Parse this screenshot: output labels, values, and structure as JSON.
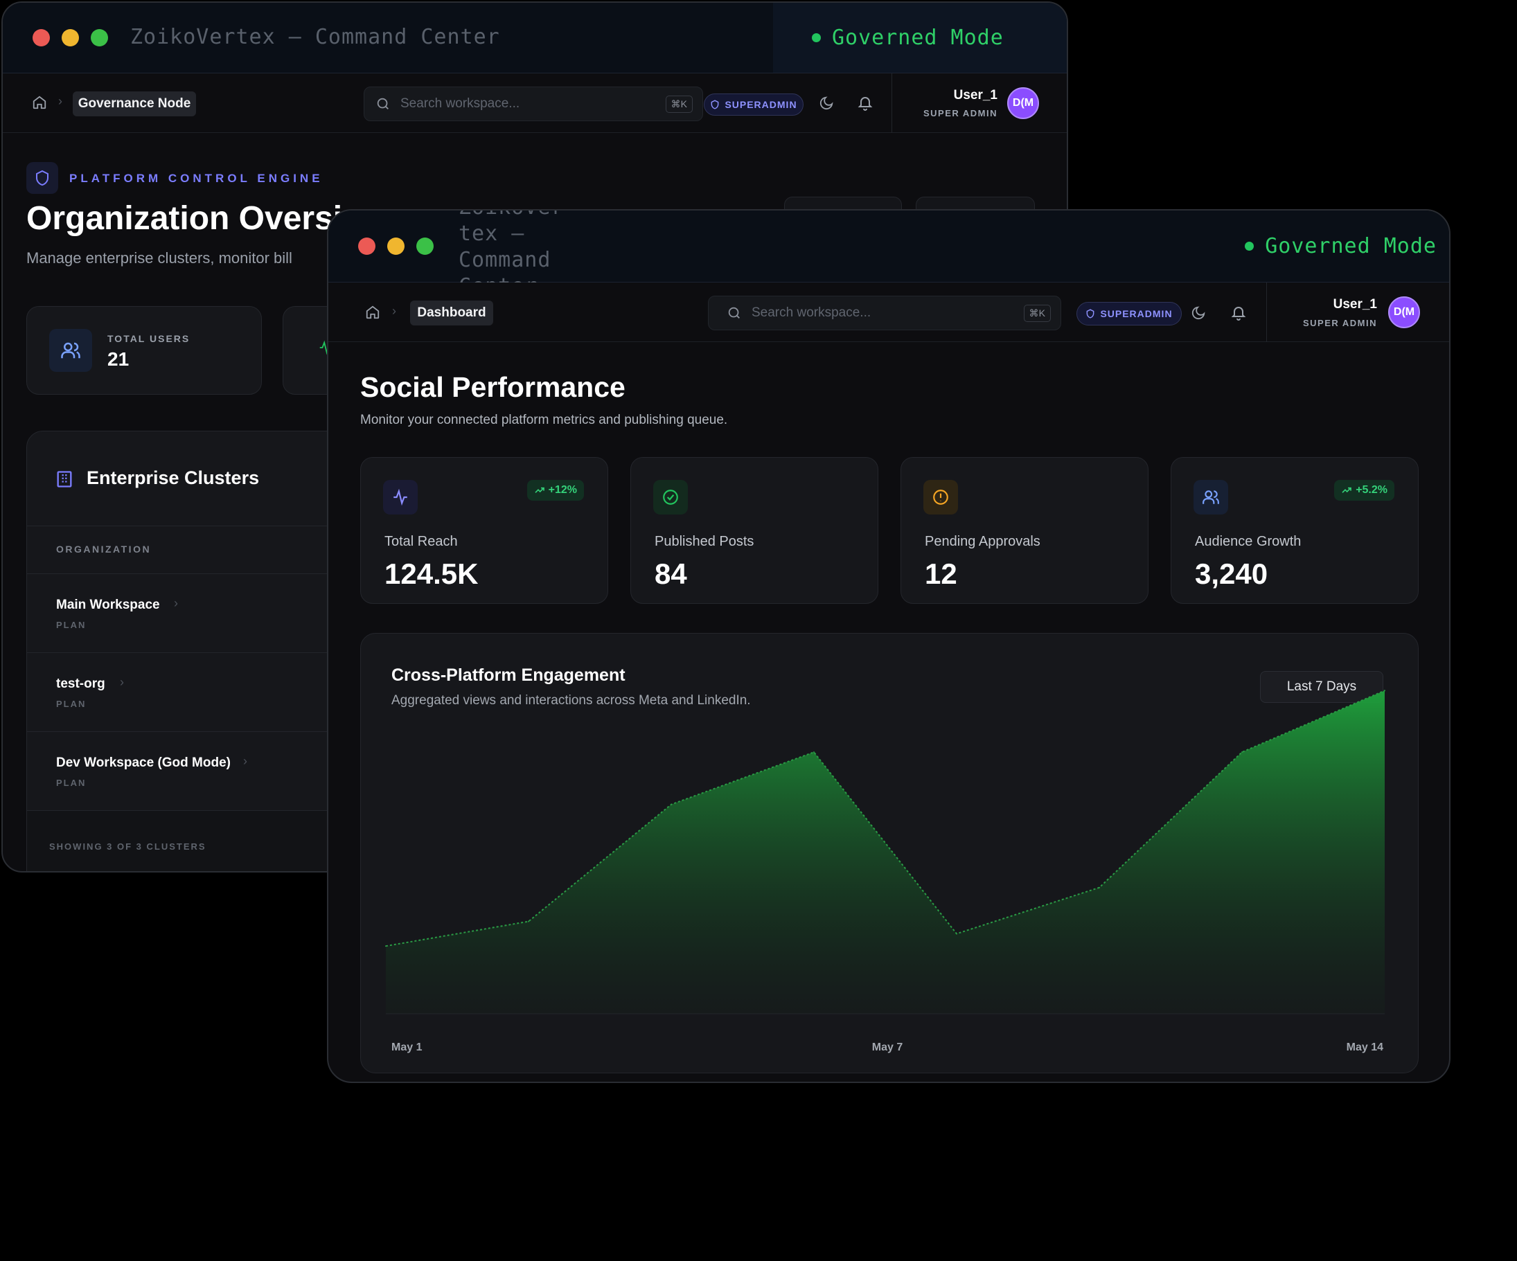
{
  "back_window": {
    "title": "ZoikoVertex — Command Center",
    "mode": "Governed Mode",
    "breadcrumb_current": "Governance Node",
    "search_placeholder": "Search workspace...",
    "search_shortcut": "⌘K",
    "role_badge": "SUPERADMIN",
    "user_name": "User_1",
    "user_role": "SUPER ADMIN",
    "avatar_initials": "D(M",
    "section_label": "PLATFORM CONTROL ENGINE",
    "page_title": "Organization Oversi",
    "page_subtitle": "Manage enterprise clusters, monitor bill",
    "total_users_label": "TOTAL USERS",
    "total_users_value": "21",
    "clusters_title": "Enterprise Clusters",
    "column_organization": "ORGANIZATION",
    "organizations": [
      {
        "name": "Main Workspace",
        "plan_label": "PLAN"
      },
      {
        "name": "test-org",
        "plan_label": "PLAN"
      },
      {
        "name": "Dev Workspace (God Mode)",
        "plan_label": "PLAN"
      }
    ],
    "footer_count": "SHOWING 3 OF 3 CLUSTERS"
  },
  "front_window": {
    "title_lines": [
      "ZoikoVer",
      "tex —",
      "Command",
      "Center"
    ],
    "mode": "Governed Mode",
    "breadcrumb_current": "Dashboard",
    "search_placeholder": "Search workspace...",
    "search_shortcut": "⌘K",
    "role_badge": "SUPERADMIN",
    "user_name": "User_1",
    "user_role": "SUPER ADMIN",
    "avatar_initials": "D(M",
    "page_title": "Social Performance",
    "page_subtitle": "Monitor your connected platform metrics and publishing queue.",
    "stats": [
      {
        "label": "Total Reach",
        "value": "124.5K",
        "trend": "+12%",
        "icon": "activity-icon",
        "accent": "#8b8cff"
      },
      {
        "label": "Published Posts",
        "value": "84",
        "trend": "",
        "icon": "check-circle-icon",
        "accent": "#22c55e"
      },
      {
        "label": "Pending Approvals",
        "value": "12",
        "trend": "",
        "icon": "alert-circle-icon",
        "accent": "#f59e0b"
      },
      {
        "label": "Audience Growth",
        "value": "3,240",
        "trend": "+5.2%",
        "icon": "users-icon",
        "accent": "#7aa2ff"
      }
    ],
    "chart_title": "Cross-Platform Engagement",
    "chart_subtitle": "Aggregated views and interactions across Meta and LinkedIn.",
    "range_select": "Last 7 Days"
  },
  "colors": {
    "accent_green": "#22c55e",
    "accent_indigo": "#7b7dff",
    "avatar_purple": "#8b4dff",
    "background": "#0d0d10"
  },
  "chart_data": {
    "type": "area",
    "title": "Cross-Platform Engagement",
    "xlabel": "",
    "ylabel": "",
    "x_tick_labels": [
      "May 1",
      "May 7",
      "May 14"
    ],
    "series": [
      {
        "values": [
          22,
          30,
          68,
          85,
          26,
          41,
          85,
          105
        ]
      }
    ],
    "ylim": [
      0,
      110
    ],
    "grid": false,
    "color": "#22c55e"
  }
}
